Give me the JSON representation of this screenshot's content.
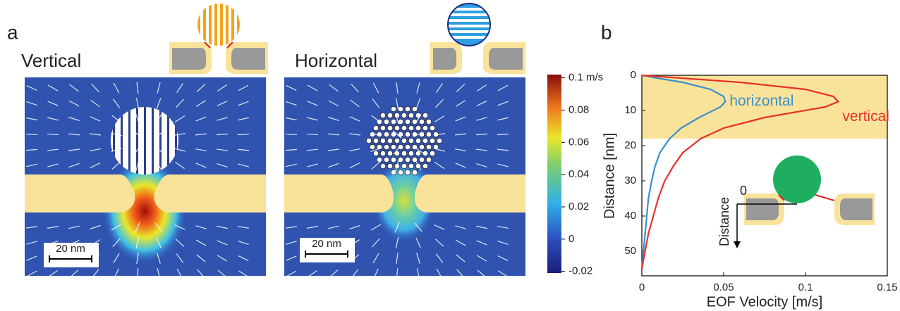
{
  "panel_a": {
    "label": "a",
    "panels": [
      {
        "title": "Vertical",
        "scale_bar": "20 nm"
      },
      {
        "title": "Horizontal",
        "scale_bar": "20 nm"
      }
    ],
    "colorbar": {
      "lim": [
        -0.021,
        0.102
      ],
      "ticks": [
        {
          "value": 0.1,
          "label": "0.1 m/s"
        },
        0.08,
        0.06,
        0.04,
        0.02,
        0,
        -0.02
      ]
    }
  },
  "chart_data": {
    "type": "line",
    "label": "b",
    "xlabel": "EOF Velocity [m/s]",
    "ylabel": "Distance [nm]",
    "y": [
      0,
      1,
      2,
      4,
      6,
      7.5,
      9,
      12,
      15,
      18,
      22,
      26,
      30,
      35,
      40,
      45,
      50,
      55
    ],
    "series": [
      {
        "name": "horizontal",
        "color": "#3a8fd0",
        "values": [
          0,
          0.012,
          0.025,
          0.042,
          0.05,
          0.051,
          0.048,
          0.035,
          0.024,
          0.017,
          0.011,
          0.008,
          0.006,
          0.004,
          0.003,
          0.002,
          0.001,
          0
        ]
      },
      {
        "name": "vertical",
        "color": "#e8302a",
        "values": [
          0,
          0.03,
          0.06,
          0.1,
          0.117,
          0.12,
          0.112,
          0.075,
          0.05,
          0.036,
          0.025,
          0.019,
          0.014,
          0.01,
          0.007,
          0.004,
          0.002,
          0
        ]
      }
    ],
    "xlim": [
      0,
      0.15
    ],
    "xticks": [
      0,
      0.05,
      0.1,
      0.15
    ],
    "ylim": [
      0,
      57
    ],
    "yticks": [
      0,
      10,
      20,
      30,
      40,
      50
    ],
    "y_inverted": true,
    "highlight_range": [
      0,
      18
    ],
    "highlight_color": "#f9e39a",
    "inset_labels": {
      "origin": "0",
      "axis": "Distance"
    }
  }
}
